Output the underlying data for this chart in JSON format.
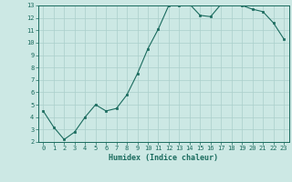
{
  "x": [
    0,
    1,
    2,
    3,
    4,
    5,
    6,
    7,
    8,
    9,
    10,
    11,
    12,
    13,
    14,
    15,
    16,
    17,
    18,
    19,
    20,
    21,
    22,
    23
  ],
  "y": [
    4.5,
    3.2,
    2.2,
    2.8,
    4.0,
    5.0,
    4.5,
    4.7,
    5.8,
    7.5,
    9.5,
    11.1,
    13.0,
    13.0,
    13.1,
    12.2,
    12.1,
    13.1,
    13.2,
    13.0,
    12.7,
    12.5,
    11.6,
    10.3
  ],
  "xlabel": "Humidex (Indice chaleur)",
  "ylim": [
    2,
    13
  ],
  "xlim_min": -0.5,
  "xlim_max": 23.5,
  "yticks": [
    2,
    3,
    4,
    5,
    6,
    7,
    8,
    9,
    10,
    11,
    12,
    13
  ],
  "xticks": [
    0,
    1,
    2,
    3,
    4,
    5,
    6,
    7,
    8,
    9,
    10,
    11,
    12,
    13,
    14,
    15,
    16,
    17,
    18,
    19,
    20,
    21,
    22,
    23
  ],
  "line_color": "#1a6b5e",
  "marker_color": "#1a6b5e",
  "bg_color": "#cce8e4",
  "grid_color": "#aacfcb",
  "xlabel_color": "#1a6b5e",
  "tick_color": "#1a6b5e",
  "axis_color": "#1a6b5e",
  "tick_fontsize": 5.0,
  "xlabel_fontsize": 6.0,
  "marker_size": 2.0,
  "linewidth": 0.8
}
